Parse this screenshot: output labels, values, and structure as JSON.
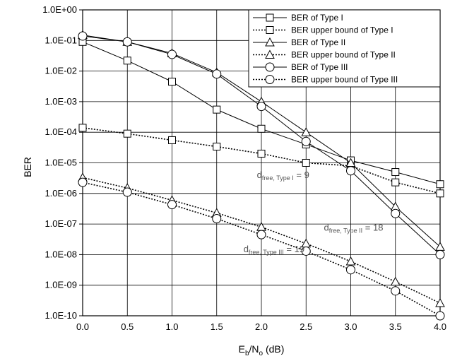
{
  "chart_data": {
    "type": "line",
    "x": [
      0.0,
      0.5,
      1.0,
      1.5,
      2.0,
      2.5,
      3.0,
      3.5,
      4.0
    ],
    "xlim": [
      0.0,
      4.0
    ],
    "ylim": [
      1e-10,
      1
    ],
    "y_scale": "log",
    "grid": true,
    "legend_position": "top-right",
    "x_tick_labels": [
      "0.0",
      "0.5",
      "1.0",
      "1.5",
      "2.0",
      "2.5",
      "3.0",
      "3.5",
      "4.0"
    ],
    "y_tick_labels": [
      "1.0E-10",
      "1.0E-09",
      "1.0E-08",
      "1.0E-07",
      "1.0E-06",
      "1.0E-05",
      "1.0E-04",
      "1.0E-03",
      "1.0E-02",
      "1.0E-01",
      "1.0E+00"
    ],
    "xlabel": {
      "main": "E",
      "sub1": "b",
      "sep": "/N",
      "sub2": "o",
      "unit": " (dB)"
    },
    "ylabel": "BER",
    "series": [
      {
        "name": "BER of Type I",
        "marker": "square",
        "dash": "solid",
        "values": [
          0.09,
          0.022,
          0.0045,
          0.00055,
          0.00013,
          4e-05,
          1.2e-05,
          5e-06,
          2e-06
        ]
      },
      {
        "name": "BER upper bound of Type I",
        "marker": "square",
        "dash": "dotted",
        "values": [
          0.00014,
          9e-05,
          5.5e-05,
          3.4e-05,
          2e-05,
          1e-05,
          8e-06,
          2.3e-06,
          1e-06
        ]
      },
      {
        "name": "BER of Type II",
        "marker": "triangle",
        "dash": "solid",
        "values": [
          0.15,
          0.09,
          0.038,
          0.009,
          0.001,
          0.0001,
          1e-05,
          3.7e-07,
          1.8e-08
        ]
      },
      {
        "name": "BER upper bound of Type II",
        "marker": "triangle",
        "dash": "dotted",
        "values": [
          3.3e-06,
          1.5e-06,
          6e-07,
          2.3e-07,
          8e-08,
          2.3e-08,
          6e-09,
          1.3e-09,
          2.6e-10
        ]
      },
      {
        "name": "BER of Type III",
        "marker": "circle",
        "dash": "solid",
        "values": [
          0.14,
          0.09,
          0.035,
          0.008,
          0.0007,
          5e-05,
          5.5e-06,
          2.2e-07,
          1e-08
        ]
      },
      {
        "name": "BER upper bound of Type III",
        "marker": "circle",
        "dash": "dotted",
        "values": [
          2.3e-06,
          1.1e-06,
          4.3e-07,
          1.5e-07,
          4.5e-08,
          1.3e-08,
          3.2e-09,
          6.5e-10,
          1e-10
        ]
      }
    ],
    "annotations": [
      {
        "main": "d",
        "sub": "free, Type I",
        "value": " = 9",
        "x": 1.95,
        "y": 3.2e-06
      },
      {
        "main": "d",
        "sub": "free, Type II",
        "value": " = 18",
        "x": 2.7,
        "y": 6e-08
      },
      {
        "main": "d",
        "sub": "free, Type III",
        "value": " = 19",
        "x": 1.8,
        "y": 1.2e-08
      }
    ]
  }
}
